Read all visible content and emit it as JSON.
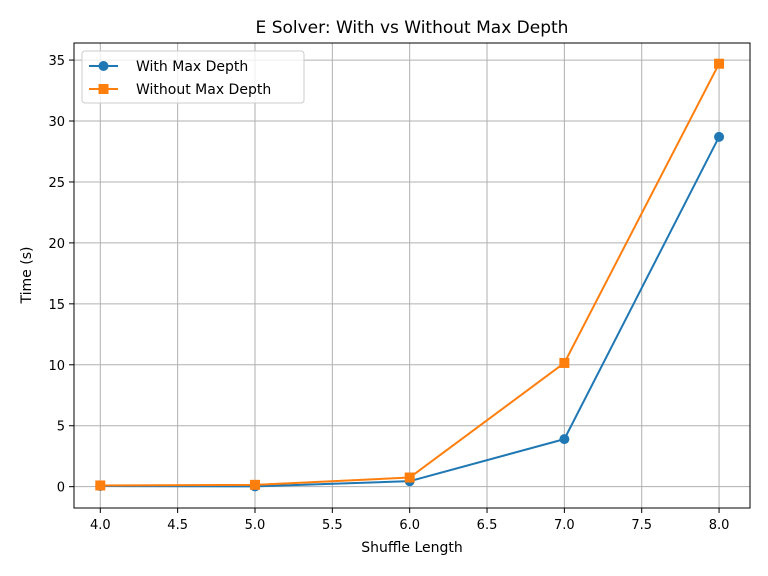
{
  "chart_data": {
    "type": "line",
    "title": "E Solver: With vs Without Max Depth",
    "xlabel": "Shuffle Length",
    "ylabel": "Time (s)",
    "xlim": [
      3.83,
      8.2
    ],
    "ylim": [
      -1.75,
      36.4
    ],
    "xticks": [
      4.0,
      4.5,
      5.0,
      5.5,
      6.0,
      6.5,
      7.0,
      7.5,
      8.0
    ],
    "xtick_labels": [
      "4.0",
      "4.5",
      "5.0",
      "5.5",
      "6.0",
      "6.5",
      "7.0",
      "7.5",
      "8.0"
    ],
    "yticks": [
      0,
      5,
      10,
      15,
      20,
      25,
      30,
      35
    ],
    "ytick_labels": [
      "0",
      "5",
      "10",
      "15",
      "20",
      "25",
      "30",
      "35"
    ],
    "grid": true,
    "legend_position": "top-left",
    "series": [
      {
        "name": "With Max Depth",
        "color": "#1f77b4",
        "marker": "circle",
        "x": [
          4,
          5,
          6,
          7,
          8
        ],
        "y": [
          0.05,
          0.02,
          0.45,
          3.9,
          28.7
        ]
      },
      {
        "name": "Without Max Depth",
        "color": "#ff7f0e",
        "marker": "square",
        "x": [
          4,
          5,
          6,
          7,
          8
        ],
        "y": [
          0.1,
          0.15,
          0.75,
          10.15,
          34.7
        ]
      }
    ]
  }
}
